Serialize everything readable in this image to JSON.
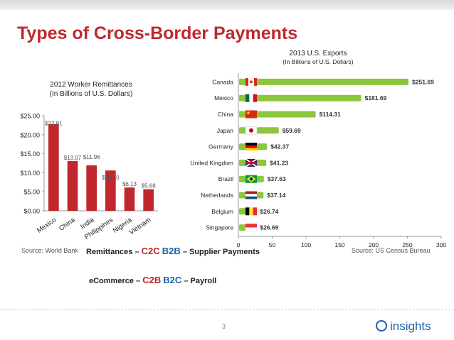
{
  "title": "Types of Cross-Border Payments",
  "left_chart": {
    "title_line1": "2012 Worker Remittances",
    "title_line2": "(In Billions of U.S. Dollars)",
    "source": "Source: World Bank"
  },
  "right_chart": {
    "title_line1": "2013 U.S. Exports",
    "title_line2": "(In Billions of U.S. Dollars)",
    "source": "Source:  US Census Bureau"
  },
  "payments": {
    "row1_a_label": "Remittances –",
    "row1_a_code": "C2C",
    "row1_b_code": "B2B",
    "row1_b_label": "– Supplier Payments",
    "row2_a_label": "eCommerce –",
    "row2_a_code": "C2B",
    "row2_b_code": "B2C",
    "row2_b_label": "– Payroll"
  },
  "page_number": "3",
  "logo_text": "insights",
  "colors": {
    "title": "#c0282d",
    "left_bar": "#c0282d",
    "right_bar": "#8cc63f",
    "accent_blue": "#1f5fa8"
  },
  "chart_data": [
    {
      "type": "bar",
      "orientation": "vertical",
      "title": "2012 Worker Remittances (In Billions of U.S. Dollars)",
      "categories": [
        "Mexico",
        "China",
        "India",
        "Philippines",
        "Nigeria",
        "Vietnam"
      ],
      "values": [
        22.81,
        13.07,
        11.96,
        10.6,
        6.13,
        5.68
      ],
      "data_labels": [
        "$22.81",
        "$13.07",
        "$11.96",
        "$10.60",
        "$6.13",
        "$5.68"
      ],
      "y_ticks": [
        "$0.00",
        "$5.00",
        "$10.00",
        "$15.00",
        "$20.00",
        "$25.00"
      ],
      "ylim": [
        0,
        25
      ],
      "grid": false
    },
    {
      "type": "bar",
      "orientation": "horizontal",
      "title": "2013 U.S. Exports (In Billions of U.S. Dollars)",
      "categories": [
        "Canada",
        "Mexico",
        "China",
        "Japan",
        "Germany",
        "United Kingdom",
        "Brazil",
        "Netherlands",
        "Belgium",
        "Singapore"
      ],
      "values": [
        251.69,
        181.69,
        114.31,
        59.69,
        42.37,
        41.23,
        37.63,
        37.14,
        26.74,
        26.69
      ],
      "data_labels": [
        "$251.69",
        "$181.69",
        "$114.31",
        "$59.69",
        "$42.37",
        "$41.23",
        "$37.63",
        "$37.14",
        "$26.74",
        "$26.69"
      ],
      "flag_icons": [
        "canada-flag-icon",
        "mexico-flag-icon",
        "china-flag-icon",
        "japan-flag-icon",
        "germany-flag-icon",
        "uk-flag-icon",
        "brazil-flag-icon",
        "netherlands-flag-icon",
        "belgium-flag-icon",
        "singapore-flag-icon"
      ],
      "x_ticks": [
        "0",
        "50",
        "100",
        "150",
        "200",
        "250",
        "300"
      ],
      "xlim": [
        0,
        300
      ],
      "grid": false
    }
  ]
}
